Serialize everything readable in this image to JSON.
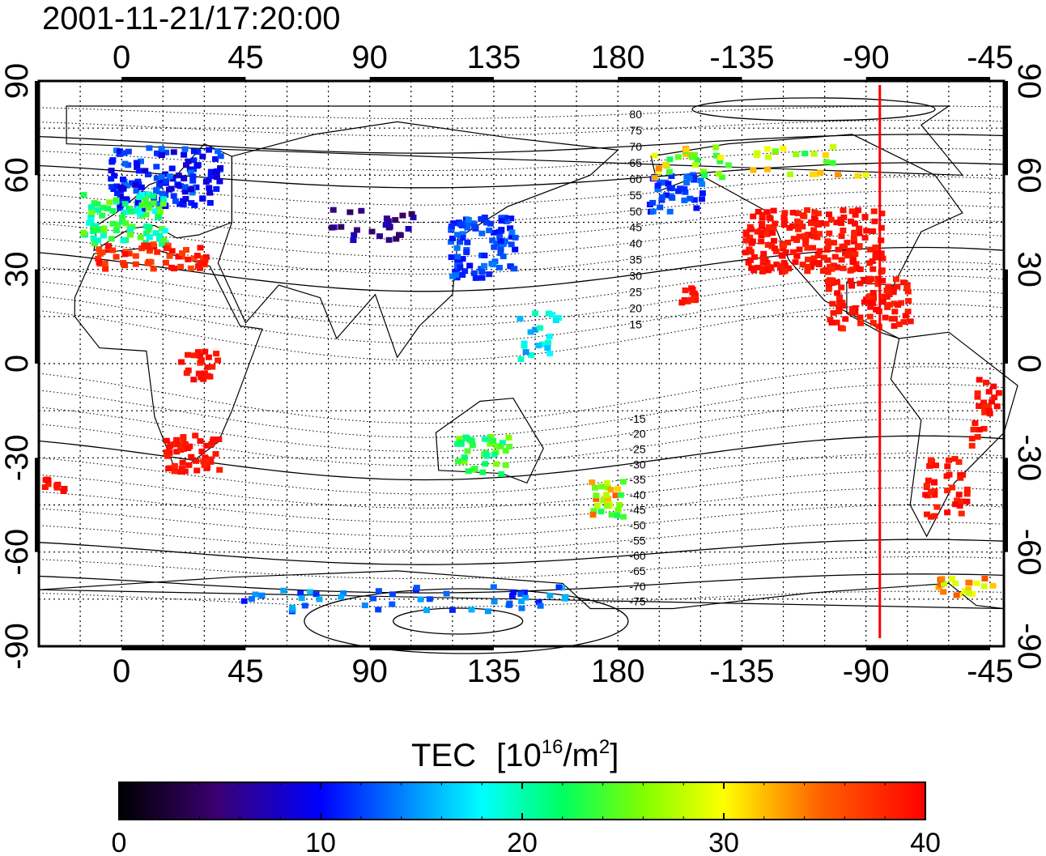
{
  "timestamp": "2001-11-21/17:20:00",
  "top_lon_ticks": [
    "0",
    "45",
    "90",
    "135",
    "180",
    "-135",
    "-90",
    "-45"
  ],
  "bottom_lon_ticks": [
    "0",
    "45",
    "90",
    "135",
    "180",
    "-135",
    "-90",
    "-45"
  ],
  "left_lat_ticks": [
    "90",
    "60",
    "30",
    "0",
    "-30",
    "-60",
    "-90"
  ],
  "right_lat_ticks": [
    "90",
    "60",
    "30",
    "0",
    "-30",
    "-60",
    "-90"
  ],
  "magnetic_lat_labels": [
    "80",
    "75",
    "70",
    "65",
    "60",
    "55",
    "50",
    "45",
    "40",
    "35",
    "30",
    "25",
    "20",
    "15",
    "-15",
    "-20",
    "-25",
    "-30",
    "-35",
    "-40",
    "-45",
    "-50",
    "-55",
    "-60",
    "-65",
    "-70",
    "-75"
  ],
  "colorbar": {
    "title": "TEC",
    "unit_base": "[10",
    "unit_exp1": "16",
    "unit_mid": "/m",
    "unit_exp2": "2",
    "unit_end": "]",
    "ticks": [
      "0",
      "10",
      "20",
      "30",
      "40"
    ],
    "min": 0,
    "max": 40
  },
  "colors": {
    "sun_meridian": "#ff0000",
    "low": "#000000",
    "high": "#ff0000"
  },
  "sun_meridian_lon": -85
}
